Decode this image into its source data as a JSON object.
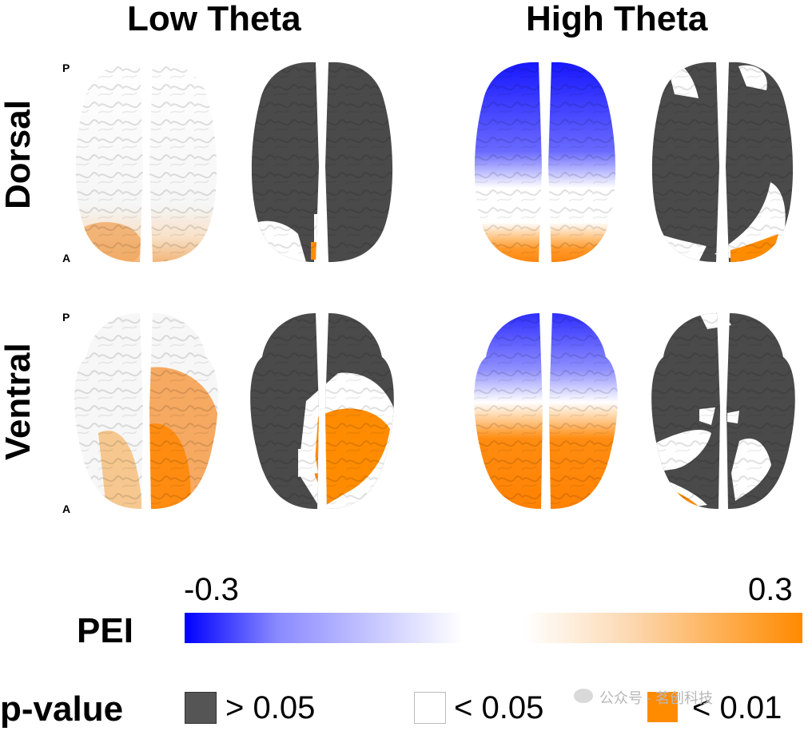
{
  "columns": [
    {
      "title": "Low Theta"
    },
    {
      "title": "High Theta"
    }
  ],
  "rows": [
    {
      "label": "Dorsal",
      "top_marker": "P",
      "bottom_marker": "A"
    },
    {
      "label": "Ventral",
      "top_marker": "P",
      "bottom_marker": "A"
    }
  ],
  "colorbar": {
    "label": "PEI",
    "min_label": "-0.3",
    "max_label": "0.3",
    "colors": [
      "#0000ff",
      "#ffffff",
      "#ff8a00"
    ]
  },
  "pvalue_legend": {
    "label": "p-value",
    "items": [
      {
        "label": "> 0.05",
        "color": "#555555"
      },
      {
        "label": "< 0.05",
        "color": "#ffffff"
      },
      {
        "label": "< 0.01",
        "color": "#ff8c00"
      }
    ]
  },
  "watermark": {
    "text": "公众号 · 茗创科技"
  }
}
